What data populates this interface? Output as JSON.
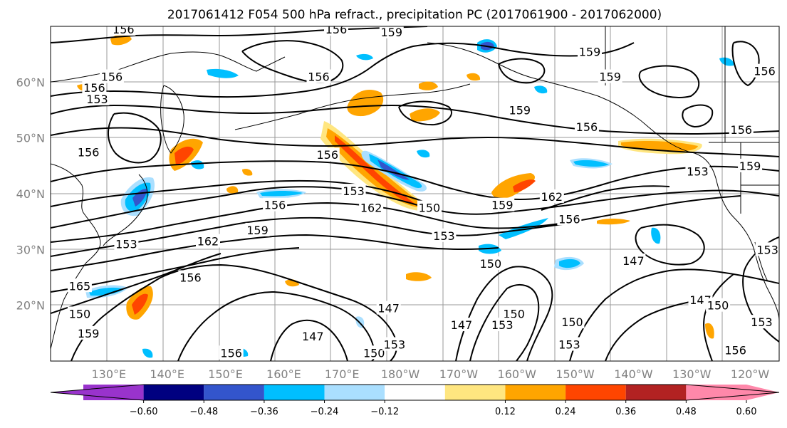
{
  "title": "2017061412 F054 500 hPa refract., precipitation PC (2017061900 - 2017062000)",
  "map": {
    "lon_min": 120,
    "lon_max": 245,
    "lat_min": 10,
    "lat_max": 70,
    "gridlines": true,
    "lat_ticks": [
      {
        "value": 20,
        "label": "20°N"
      },
      {
        "value": 30,
        "label": "30°N"
      },
      {
        "value": 40,
        "label": "40°N"
      },
      {
        "value": 50,
        "label": "50°N"
      },
      {
        "value": 60,
        "label": "60°N"
      }
    ],
    "lon_ticks": [
      {
        "value": 130,
        "label": "130°E"
      },
      {
        "value": 140,
        "label": "140°E"
      },
      {
        "value": 150,
        "label": "150°E"
      },
      {
        "value": 160,
        "label": "160°E"
      },
      {
        "value": 170,
        "label": "170°E"
      },
      {
        "value": 180,
        "label": "180°W"
      },
      {
        "value": 190,
        "label": "170°W"
      },
      {
        "value": 200,
        "label": "160°W"
      },
      {
        "value": 210,
        "label": "150°W"
      },
      {
        "value": 220,
        "label": "140°W"
      },
      {
        "value": 230,
        "label": "130°W"
      },
      {
        "value": 240,
        "label": "120°W"
      }
    ]
  },
  "colorbar": {
    "colors": [
      "#9933cc",
      "#000080",
      "#3355cc",
      "#00bfff",
      "#aadfff",
      "#ffffff",
      "#ffe680",
      "#ffa500",
      "#ff4500",
      "#b22222",
      "#ff88aa"
    ],
    "ticks": [
      "−0.60",
      "−0.48",
      "−0.36",
      "−0.24",
      "−0.12",
      "0.12",
      "0.24",
      "0.36",
      "0.48",
      "0.60"
    ]
  },
  "contour_labels": [
    {
      "text": "156",
      "lon": 132.5,
      "lat": 69.5
    },
    {
      "text": "156",
      "lon": 169,
      "lat": 69.5
    },
    {
      "text": "159",
      "lon": 178.5,
      "lat": 69
    },
    {
      "text": "159",
      "lon": 212.5,
      "lat": 65.5
    },
    {
      "text": "159",
      "lon": 216,
      "lat": 61
    },
    {
      "text": "156",
      "lon": 166,
      "lat": 61
    },
    {
      "text": "156",
      "lon": 130.5,
      "lat": 61
    },
    {
      "text": "156",
      "lon": 127.5,
      "lat": 59
    },
    {
      "text": "153",
      "lon": 128,
      "lat": 57
    },
    {
      "text": "159",
      "lon": 200.5,
      "lat": 55
    },
    {
      "text": "156",
      "lon": 212,
      "lat": 52
    },
    {
      "text": "156",
      "lon": 238.5,
      "lat": 51.5
    },
    {
      "text": "156",
      "lon": 126.5,
      "lat": 47.5
    },
    {
      "text": "156",
      "lon": 167.5,
      "lat": 47
    },
    {
      "text": "153",
      "lon": 231,
      "lat": 44
    },
    {
      "text": "159",
      "lon": 240,
      "lat": 45
    },
    {
      "text": "153",
      "lon": 172,
      "lat": 40.5
    },
    {
      "text": "156",
      "lon": 158.5,
      "lat": 38
    },
    {
      "text": "162",
      "lon": 175,
      "lat": 37.5
    },
    {
      "text": "150",
      "lon": 185,
      "lat": 37.5
    },
    {
      "text": "159",
      "lon": 197.5,
      "lat": 38
    },
    {
      "text": "162",
      "lon": 206,
      "lat": 39.5
    },
    {
      "text": "156",
      "lon": 209,
      "lat": 35.5
    },
    {
      "text": "159",
      "lon": 155.5,
      "lat": 33.5
    },
    {
      "text": "153",
      "lon": 187.5,
      "lat": 32.5
    },
    {
      "text": "162",
      "lon": 147,
      "lat": 31.5
    },
    {
      "text": "153",
      "lon": 133,
      "lat": 31
    },
    {
      "text": "150",
      "lon": 195.5,
      "lat": 27.5
    },
    {
      "text": "147",
      "lon": 220,
      "lat": 28
    },
    {
      "text": "156",
      "lon": 144,
      "lat": 25
    },
    {
      "text": "165",
      "lon": 125,
      "lat": 23.5
    },
    {
      "text": "147",
      "lon": 178,
      "lat": 19.5
    },
    {
      "text": "150",
      "lon": 125,
      "lat": 18.5
    },
    {
      "text": "150",
      "lon": 199.5,
      "lat": 18.5
    },
    {
      "text": "147",
      "lon": 190.5,
      "lat": 16.5
    },
    {
      "text": "150",
      "lon": 209.5,
      "lat": 17
    },
    {
      "text": "153",
      "lon": 197.5,
      "lat": 16.5
    },
    {
      "text": "147",
      "lon": 165,
      "lat": 14.5
    },
    {
      "text": "159",
      "lon": 126.5,
      "lat": 15
    },
    {
      "text": "153",
      "lon": 209,
      "lat": 13
    },
    {
      "text": "150",
      "lon": 175.5,
      "lat": 11.5
    },
    {
      "text": "153",
      "lon": 179,
      "lat": 13
    },
    {
      "text": "156",
      "lon": 151,
      "lat": 11.5
    },
    {
      "text": "147",
      "lon": 231.5,
      "lat": 21
    },
    {
      "text": "150",
      "lon": 234.5,
      "lat": 20
    },
    {
      "text": "153",
      "lon": 242,
      "lat": 17
    },
    {
      "text": "156",
      "lon": 237.5,
      "lat": 12
    },
    {
      "text": "153",
      "lon": 243,
      "lat": 30
    },
    {
      "text": "156",
      "lon": 242.5,
      "lat": 62
    }
  ]
}
